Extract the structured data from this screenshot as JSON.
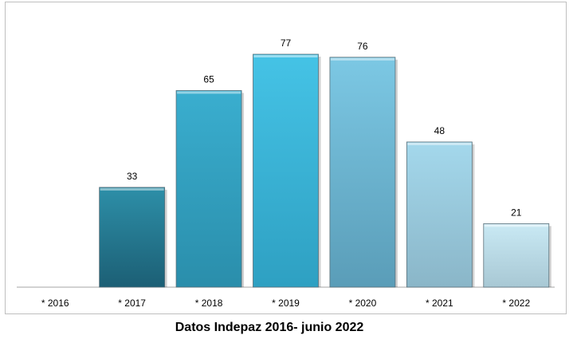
{
  "chart_data": {
    "type": "bar",
    "categories": [
      "* 2016",
      "* 2017",
      "* 2018",
      "* 2019",
      "* 2020",
      "* 2021",
      "* 2022"
    ],
    "values": [
      0,
      33,
      65,
      77,
      76,
      48,
      21
    ],
    "value_labels": [
      "",
      "33",
      "65",
      "77",
      "76",
      "48",
      "21"
    ],
    "title": "",
    "xlabel": "",
    "ylabel": "",
    "ylim": [
      0,
      80
    ],
    "grid": false,
    "colors": {
      "top": [
        "#2d8fa8",
        "#2d8fa8",
        "#3aaecf",
        "#45c3e6",
        "#7cc8e4",
        "#a4d8ec",
        "#c9e9f4"
      ],
      "bottom": [
        "#1c5f75",
        "#1c5f75",
        "#2a8eab",
        "#2ea0c2",
        "#5a9db8",
        "#8ab6c8",
        "#a8c8d4"
      ]
    }
  },
  "caption": "Datos Indepaz 2016- junio 2022"
}
